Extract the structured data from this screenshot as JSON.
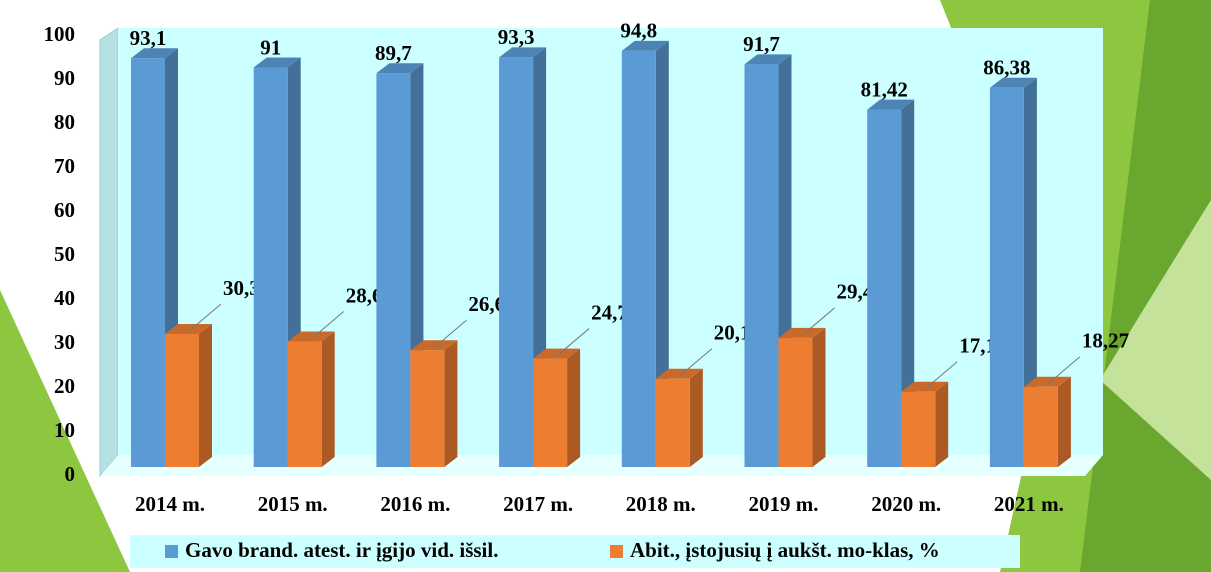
{
  "chart_data": {
    "type": "bar3d",
    "categories": [
      "2014 m.",
      "2015 m.",
      "2016 m.",
      "2017 m.",
      "2018 m.",
      "2019 m.",
      "2020 m.",
      "2021 m."
    ],
    "series": [
      {
        "name": "Gavo brand. atest. ir įgijo vid. išsil.",
        "color": "#5b9bd5",
        "values": [
          93.1,
          91,
          89.7,
          93.3,
          94.8,
          91.7,
          81.42,
          86.38
        ],
        "value_labels": [
          "93,1",
          "91",
          "89,7",
          "93,3",
          "94,8",
          "91,7",
          "81,42",
          "86,38"
        ]
      },
      {
        "name": "Abit., įstojusių į aukšt. mo-klas, %",
        "color": "#ed7d31",
        "values": [
          30.3,
          28.6,
          26.6,
          24.7,
          20.1,
          29.4,
          17.14,
          18.27
        ],
        "value_labels": [
          "30,3",
          "28,6",
          "26,6",
          "24,7",
          "20,1",
          "29,4",
          "17,14",
          "18,27"
        ]
      }
    ],
    "ylim": [
      0,
      100
    ],
    "yticks": [
      0,
      10,
      20,
      30,
      40,
      50,
      60,
      70,
      80,
      90,
      100
    ],
    "grid": false
  }
}
